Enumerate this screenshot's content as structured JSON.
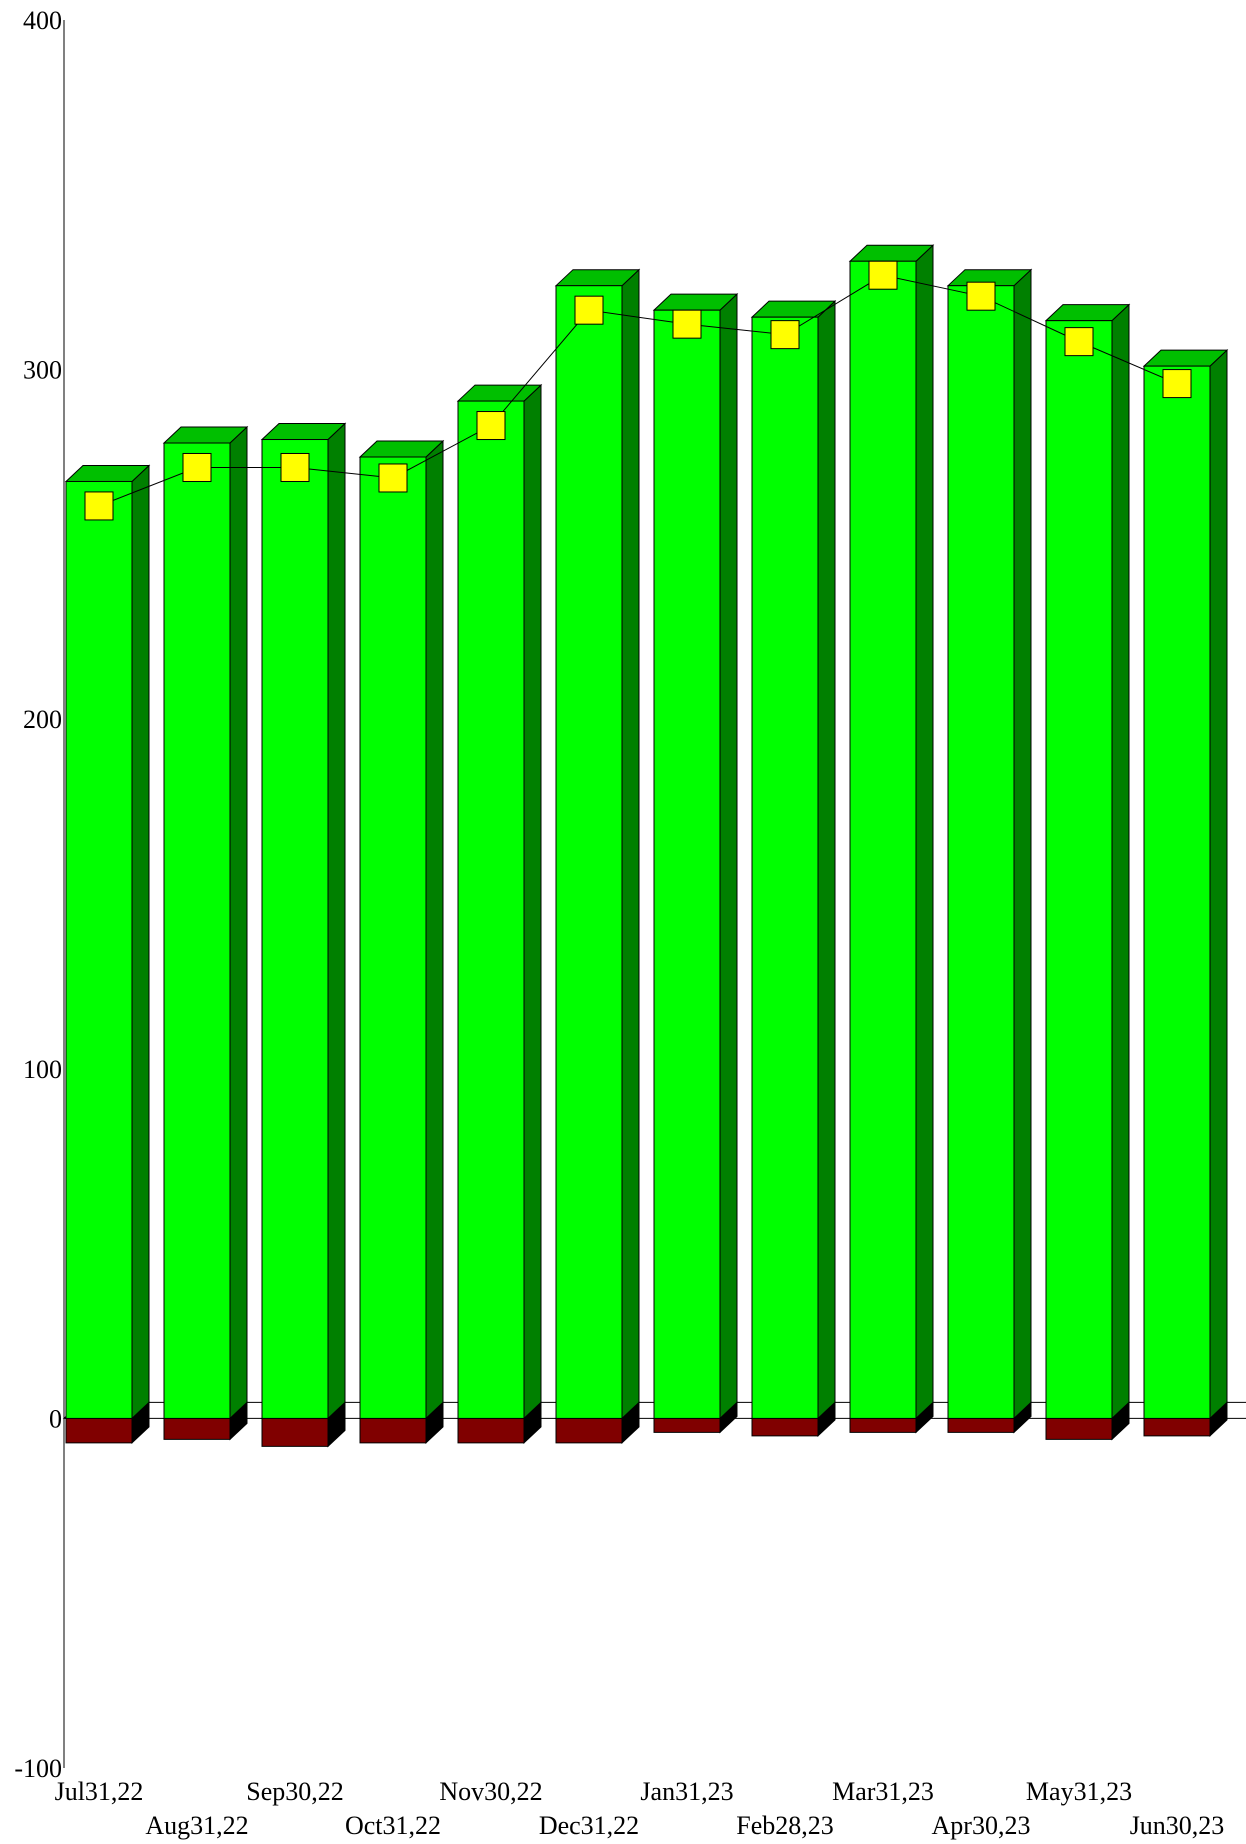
{
  "chart_data": {
    "type": "bar",
    "three_d": true,
    "title": "",
    "xlabel": "",
    "ylabel": "",
    "ylim": [
      -100,
      400
    ],
    "yticks": [
      -100,
      0,
      100,
      200,
      300,
      400
    ],
    "grid": false,
    "legend": "none",
    "categories": [
      "Jul31,22",
      "Aug31,22",
      "Sep30,22",
      "Oct31,22",
      "Nov30,22",
      "Dec31,22",
      "Jan31,23",
      "Feb28,23",
      "Mar31,23",
      "Apr30,23",
      "May31,23",
      "Jun30,23"
    ],
    "series": [
      {
        "kind": "bar",
        "color": "#00ff00",
        "values": [
          268,
          279,
          280,
          275,
          291,
          324,
          317,
          315,
          331,
          324,
          314,
          301
        ]
      },
      {
        "kind": "bar",
        "color": "#800000",
        "values": [
          -7,
          -6,
          -8,
          -7,
          -7,
          -7,
          -4,
          -5,
          -4,
          -4,
          -6,
          -5
        ]
      },
      {
        "kind": "line",
        "color": "#ffff00",
        "values": [
          261,
          272,
          272,
          269,
          284,
          317,
          313,
          310,
          327,
          321,
          308,
          296
        ]
      }
    ]
  }
}
